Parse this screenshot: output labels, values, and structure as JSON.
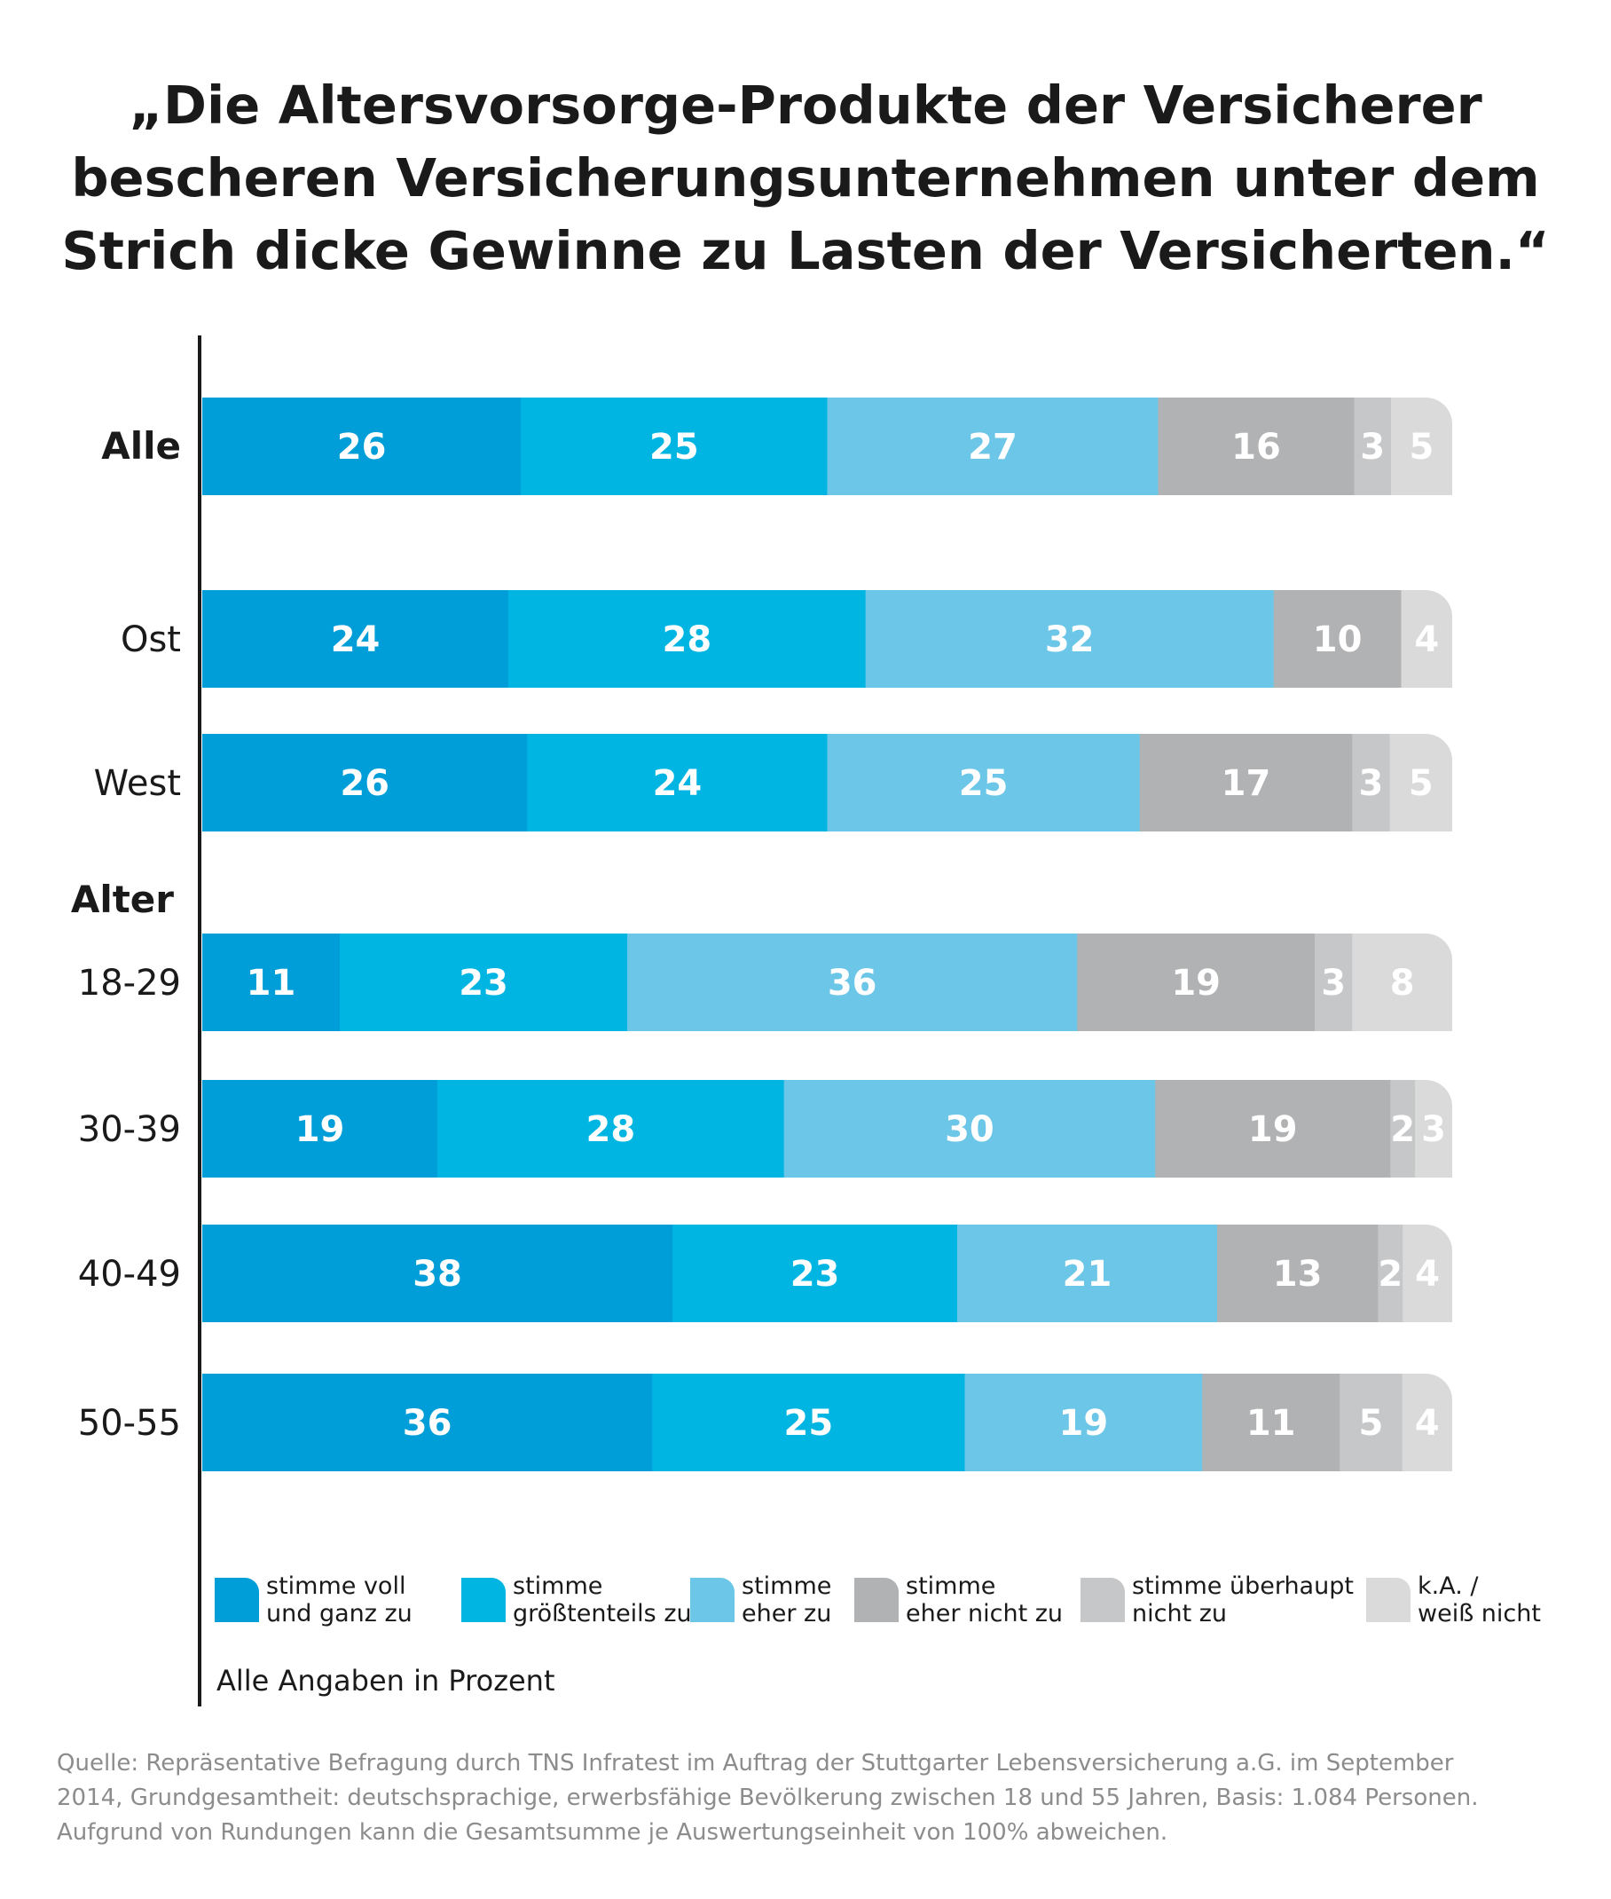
{
  "title_lines": [
    "„Die Altersvorsorge-Produkte der Versicherer",
    "bescheren Versicherungsunternehmen unter dem",
    "Strich dicke Gewinne zu Lasten der Versicherten.“"
  ],
  "footnote": "Alle Angaben in Prozent",
  "source_lines": [
    "Quelle: Repräsentative Befragung durch TNS Infratest im Auftrag der Stuttgarter Lebensversicherung a.G. im September",
    "2014, Grundgesamtheit: deutschsprachige, erwerbsfähige Bevölkerung zwischen 18 und 55 Jahren, Basis: 1.084 Personen.",
    "Aufgrund von Rundungen kann die Gesamtsumme je Auswertungseinheit von 100% abweichen."
  ],
  "chart_data": {
    "type": "bar",
    "orientation": "horizontal",
    "stacked": true,
    "group_header": "Alter",
    "categories": [
      "Alle",
      "Ost",
      "West",
      "18-29",
      "30-39",
      "40-49",
      "50-55"
    ],
    "series": [
      {
        "name": "stimme voll\nund ganz zu",
        "color": "#009ed8",
        "values": [
          26,
          24,
          26,
          11,
          19,
          38,
          36
        ]
      },
      {
        "name": "stimme\ngrößtenteils zu",
        "color": "#00b5e2",
        "values": [
          25,
          28,
          24,
          23,
          28,
          23,
          25
        ]
      },
      {
        "name": "stimme\neher zu",
        "color": "#6cc6e8",
        "values": [
          27,
          32,
          25,
          36,
          30,
          21,
          19
        ]
      },
      {
        "name": "stimme\neher nicht zu",
        "color": "#b1b2b3",
        "values": [
          16,
          10,
          17,
          19,
          19,
          13,
          11
        ]
      },
      {
        "name": "stimme überhaupt\nnicht zu",
        "color": "#c6c7c8",
        "values": [
          3,
          0,
          3,
          3,
          2,
          2,
          5
        ]
      },
      {
        "name": "k.A. /\nweiß nicht",
        "color": "#dadada",
        "values": [
          5,
          4,
          5,
          8,
          3,
          4,
          4
        ]
      }
    ],
    "legend_position": "bottom",
    "grid": false
  }
}
